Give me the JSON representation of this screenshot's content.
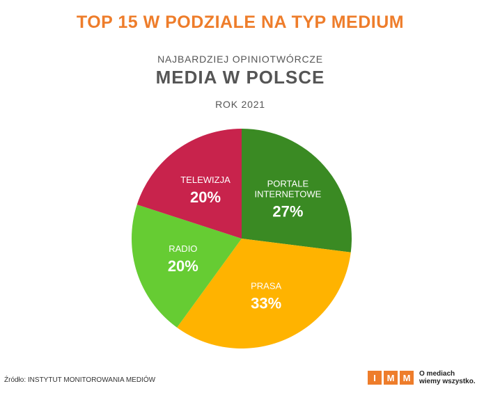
{
  "header": {
    "title": "TOP 15 W PODZIALE NA TYP MEDIUM",
    "supertitle": "NAJBARDZIEJ OPINIOTWÓRCZE",
    "subtitle": "MEDIA W POLSCE",
    "year": "ROK 2021"
  },
  "chart_data": {
    "type": "pie",
    "slices": [
      {
        "label": [
          "PORTALE",
          "INTERNETOWE"
        ],
        "value": 27,
        "value_label": "27%",
        "color": "#3a8a23"
      },
      {
        "label": [
          "PRASA"
        ],
        "value": 33,
        "value_label": "33%",
        "color": "#ffb300"
      },
      {
        "label": [
          "RADIO"
        ],
        "value": 20,
        "value_label": "20%",
        "color": "#66cc33"
      },
      {
        "label": [
          "TELEWIZJA"
        ],
        "value": 20,
        "value_label": "20%",
        "color": "#c8234c"
      }
    ]
  },
  "footer": {
    "source": "Źródło: INSTYTUT MONITOROWANIA MEDIÓW",
    "logo_letters": [
      "I",
      "M",
      "M"
    ],
    "logo_tagline_1": "O mediach",
    "logo_tagline_2": "wiemy wszystko."
  },
  "colors": {
    "accent": "#ee7d2b",
    "text": "#555555"
  }
}
